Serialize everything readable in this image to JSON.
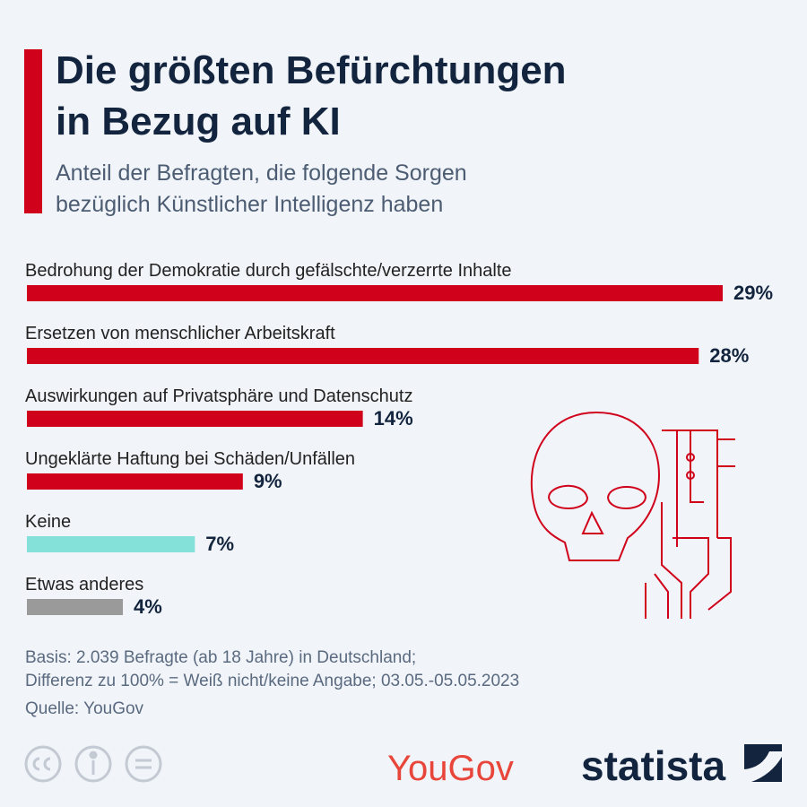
{
  "chart_data": {
    "type": "bar",
    "title_lines": [
      "Die größten Befürchtungen",
      "in Bezug auf KI"
    ],
    "subtitle_lines": [
      "Anteil der Befragten, die folgende Sorgen",
      "bezüglich Künstlicher Intelligenz haben"
    ],
    "categories": [
      "Bedrohung der Demokratie durch gefälschte/verzerrte Inhalte",
      "Ersetzen von menschlicher Arbeitskraft",
      "Auswirkungen auf Privatsphäre und Datenschutz",
      "Ungeklärte Haftung bei Schäden/Unfällen",
      "Keine",
      "Etwas anderes"
    ],
    "values": [
      29,
      28,
      14,
      9,
      7,
      4
    ],
    "value_labels": [
      "29%",
      "28%",
      "14%",
      "9%",
      "7%",
      "4%"
    ],
    "colors": [
      "#d0021b",
      "#d0021b",
      "#d0021b",
      "#d0021b",
      "#84e1d9",
      "#9a9a9a"
    ],
    "notes": [
      "Basis: 2.039 Befragte (ab 18 Jahre) in Deutschland;",
      "Differenz zu 100% = Weiß nicht/keine Angabe; 03.05.-05.05.2023"
    ],
    "source": "Quelle: YouGov",
    "logos": [
      "YouGov",
      "statista"
    ]
  }
}
